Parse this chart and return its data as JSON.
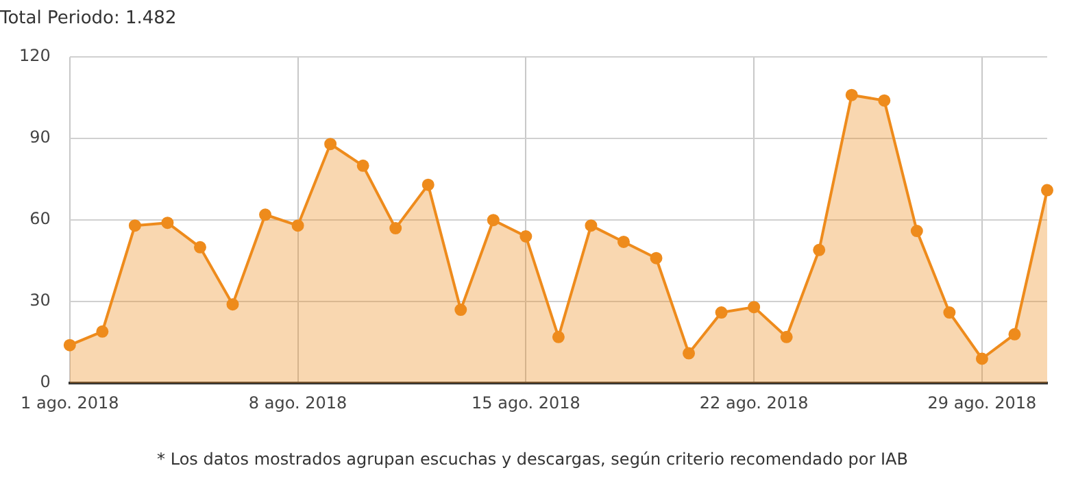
{
  "chart_data": {
    "type": "area",
    "title": "Total Periodo: 1.482",
    "annotations": [
      "* Los datos mostrados agrupan escuchas y descargas, según criterio recomendado por IAB"
    ],
    "categories": [
      "1 ago. 2018",
      null,
      null,
      null,
      null,
      null,
      null,
      "8 ago. 2018",
      null,
      null,
      null,
      null,
      null,
      null,
      "15 ago. 2018",
      null,
      null,
      null,
      null,
      null,
      null,
      "22 ago. 2018",
      null,
      null,
      null,
      null,
      null,
      null,
      "29 ago. 2018",
      null,
      null
    ],
    "series": [
      {
        "color": "#ee8b1c",
        "values": [
          14,
          19,
          58,
          59,
          50,
          29,
          62,
          58,
          88,
          80,
          57,
          73,
          27,
          60,
          54,
          17,
          58,
          52,
          46,
          11,
          26,
          28,
          17,
          49,
          106,
          104,
          56,
          26,
          9,
          18,
          71
        ]
      }
    ],
    "ylim": [
      0,
      120
    ],
    "yticks": [
      0,
      30,
      60,
      90,
      120
    ],
    "grid": true,
    "marker": "circle",
    "legend": false
  }
}
